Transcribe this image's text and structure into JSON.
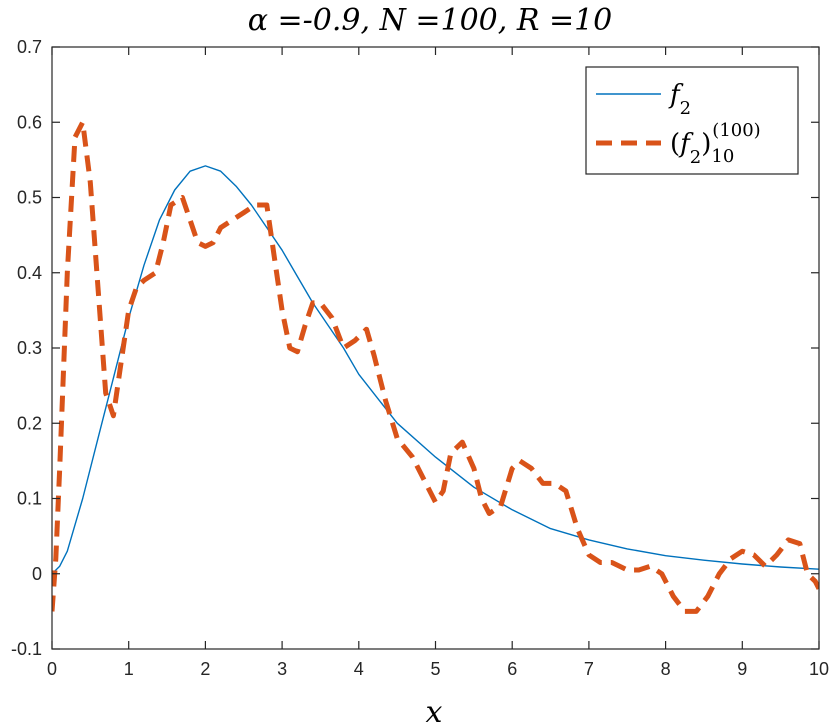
{
  "chart_data": {
    "type": "line",
    "title": "α =-0.9, N =100, R =10",
    "xlabel": "x",
    "ylabel": "",
    "xlim": [
      0,
      10
    ],
    "ylim": [
      -0.1,
      0.7
    ],
    "xticks": [
      0,
      1,
      2,
      3,
      4,
      5,
      6,
      7,
      8,
      9,
      10
    ],
    "xtick_labels": [
      "0",
      "1",
      "2",
      "3",
      "4",
      "5",
      "6",
      "7",
      "8",
      "9",
      "10"
    ],
    "yticks": [
      -0.1,
      0,
      0.1,
      0.2,
      0.3,
      0.4,
      0.5,
      0.6,
      0.7
    ],
    "ytick_labels": [
      "-0.1",
      "0",
      "0.1",
      "0.2",
      "0.3",
      "0.4",
      "0.5",
      "0.6",
      "0.7"
    ],
    "grid": false,
    "legend_position": "top-right",
    "series": [
      {
        "name": "f2",
        "legend_html": "<tspan font-style='italic'>f</tspan><tspan baseline-shift='sub' font-size='18'>2</tspan>",
        "color": "#0072BD",
        "style": "solid",
        "x": [
          0,
          0.1,
          0.2,
          0.4,
          0.6,
          0.8,
          1.0,
          1.2,
          1.4,
          1.6,
          1.8,
          2.0,
          2.2,
          2.4,
          2.6,
          2.8,
          3.0,
          3.2,
          3.4,
          3.6,
          3.8,
          4.0,
          4.5,
          5.0,
          5.5,
          6.0,
          6.5,
          7.0,
          7.5,
          8.0,
          8.5,
          9.0,
          9.5,
          10.0
        ],
        "y": [
          0,
          0.01,
          0.03,
          0.1,
          0.18,
          0.26,
          0.34,
          0.41,
          0.47,
          0.51,
          0.535,
          0.542,
          0.535,
          0.515,
          0.49,
          0.46,
          0.43,
          0.395,
          0.36,
          0.33,
          0.3,
          0.265,
          0.2,
          0.155,
          0.115,
          0.085,
          0.06,
          0.045,
          0.033,
          0.024,
          0.018,
          0.013,
          0.009,
          0.006
        ]
      },
      {
        "name": "(f2)10(100)",
        "legend_html": "(<tspan font-style='italic'>f</tspan><tspan baseline-shift='sub' font-size='18'>2</tspan>)<tspan dy='10' font-size='18'>10</tspan><tspan dx='-22' dy='-26' font-size='18'>(100)</tspan>",
        "color": "#D95319",
        "style": "dashed",
        "x": [
          0,
          0.05,
          0.1,
          0.2,
          0.3,
          0.4,
          0.5,
          0.6,
          0.7,
          0.8,
          0.9,
          1.0,
          1.1,
          1.2,
          1.35,
          1.45,
          1.55,
          1.7,
          1.8,
          1.9,
          2.0,
          2.1,
          2.2,
          2.35,
          2.5,
          2.65,
          2.8,
          2.9,
          3.0,
          3.1,
          3.2,
          3.3,
          3.4,
          3.5,
          3.65,
          3.8,
          3.95,
          4.1,
          4.2,
          4.35,
          4.5,
          4.7,
          4.9,
          5.0,
          5.1,
          5.2,
          5.35,
          5.5,
          5.6,
          5.7,
          5.85,
          6.0,
          6.1,
          6.25,
          6.4,
          6.55,
          6.7,
          6.85,
          7.0,
          7.15,
          7.3,
          7.5,
          7.65,
          7.8,
          7.95,
          8.1,
          8.25,
          8.4,
          8.55,
          8.7,
          8.85,
          9.0,
          9.15,
          9.3,
          9.45,
          9.6,
          9.75,
          9.85,
          9.95,
          10.0
        ],
        "y": [
          -0.05,
          0.02,
          0.14,
          0.4,
          0.58,
          0.6,
          0.52,
          0.38,
          0.24,
          0.21,
          0.28,
          0.35,
          0.38,
          0.39,
          0.4,
          0.44,
          0.49,
          0.5,
          0.47,
          0.44,
          0.435,
          0.44,
          0.46,
          0.47,
          0.48,
          0.49,
          0.49,
          0.42,
          0.35,
          0.3,
          0.295,
          0.33,
          0.36,
          0.36,
          0.34,
          0.3,
          0.31,
          0.325,
          0.29,
          0.23,
          0.18,
          0.155,
          0.115,
          0.095,
          0.11,
          0.16,
          0.175,
          0.14,
          0.1,
          0.08,
          0.09,
          0.14,
          0.15,
          0.14,
          0.12,
          0.12,
          0.11,
          0.06,
          0.025,
          0.015,
          0.015,
          0.005,
          0.005,
          0.01,
          0.0,
          -0.03,
          -0.05,
          -0.05,
          -0.03,
          0.0,
          0.02,
          0.03,
          0.025,
          0.01,
          0.025,
          0.045,
          0.04,
          0.0,
          -0.01,
          -0.02
        ]
      }
    ]
  }
}
